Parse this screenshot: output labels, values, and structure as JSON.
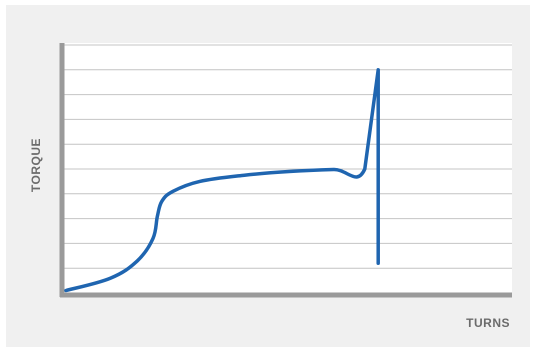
{
  "chart_data": {
    "type": "line",
    "xlabel": "TURNS",
    "ylabel": "TORQUE",
    "xlim": [
      0,
      100
    ],
    "ylim": [
      0,
      10
    ],
    "grid": true,
    "legend": "none",
    "colors": {
      "line": "#1f65b0",
      "axis": "#9a9a9a",
      "grid": "#c4c4c4",
      "background": "#f0f0f0",
      "plot_background": "#ffffff"
    },
    "series": [
      {
        "points": [
          [
            0.0,
            0.1
          ],
          [
            10.0,
            0.6
          ],
          [
            16.0,
            1.3
          ],
          [
            19.5,
            2.2
          ],
          [
            20.5,
            3.1
          ],
          [
            21.5,
            3.7
          ],
          [
            24.0,
            4.1
          ],
          [
            30.0,
            4.5
          ],
          [
            40.0,
            4.75
          ],
          [
            50.0,
            4.9
          ],
          [
            60.0,
            4.98
          ],
          [
            67.0,
            5.0
          ],
          [
            70.0,
            9.0
          ],
          [
            70.0,
            1.2
          ]
        ]
      }
    ]
  }
}
